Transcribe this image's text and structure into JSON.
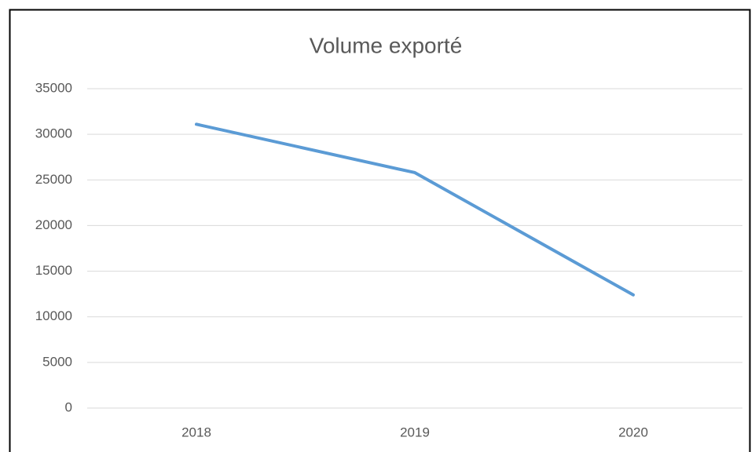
{
  "chart_data": {
    "type": "line",
    "title": "Volume exporté",
    "categories": [
      "2018",
      "2019",
      "2020"
    ],
    "series": [
      {
        "name": "Volume exporté",
        "color": "#5b9bd5",
        "values": [
          31100,
          25800,
          12400
        ]
      }
    ],
    "ylim": [
      0,
      35000
    ],
    "yticks": [
      0,
      5000,
      10000,
      15000,
      20000,
      25000,
      30000,
      35000
    ],
    "grid": true
  }
}
